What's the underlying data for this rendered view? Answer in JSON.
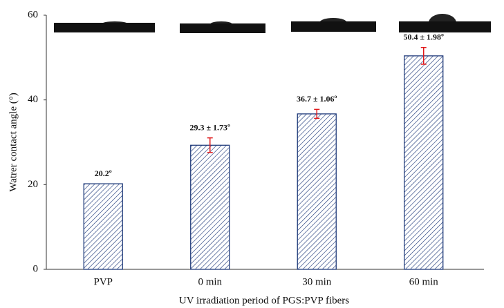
{
  "chart_data": {
    "type": "bar",
    "x_label": "UV irradiation period of PGS:PVP fibers",
    "y_label": "Watrer contact angle (°)",
    "categories": [
      "PVP",
      "0 min",
      "30 min",
      "60 min"
    ],
    "values": [
      20.2,
      29.3,
      36.7,
      50.4
    ],
    "errors": [
      null,
      1.73,
      1.06,
      1.98
    ],
    "value_labels": [
      "20.2º",
      "29.3 ± 1.73º",
      "36.7 ± 1.06º",
      "50.4 ± 1.98º"
    ],
    "color": "#1f3a7a",
    "error_color": "#e0191b",
    "ylim": [
      0,
      60
    ],
    "yticks": [
      0,
      20,
      40,
      60
    ],
    "grid": false
  }
}
